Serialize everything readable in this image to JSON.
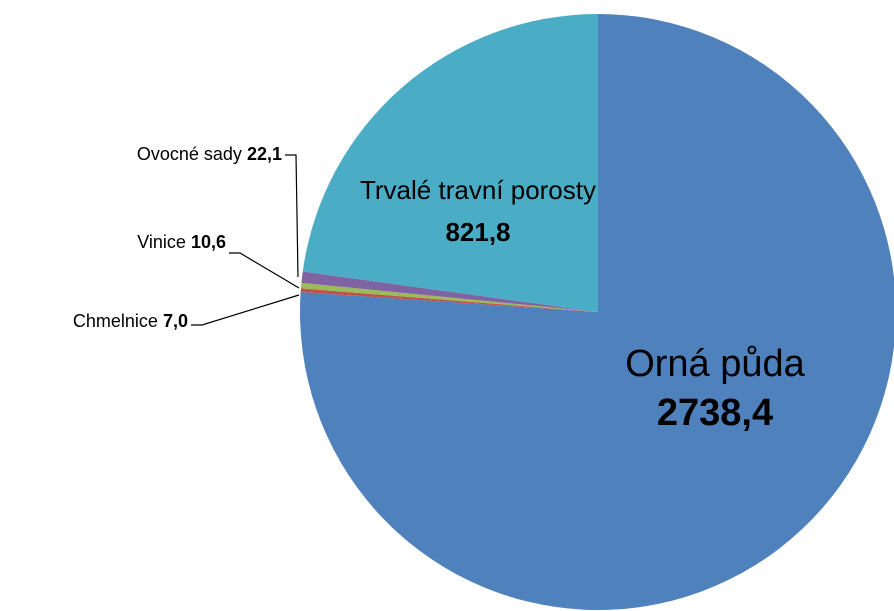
{
  "chart_data": {
    "type": "pie",
    "categories": [
      "Orná půda",
      "Chmelnice",
      "Vinice",
      "Ovocné sady",
      "Trvalé travní porosty"
    ],
    "values": [
      2738.4,
      7.0,
      10.6,
      22.1,
      821.8
    ],
    "value_labels": [
      "2738,4",
      "7,0",
      "10,6",
      "22,1",
      "821,8"
    ],
    "colors": [
      "#4f81bd",
      "#c0504d",
      "#9bbb59",
      "#8064a2",
      "#4bacc6"
    ]
  }
}
